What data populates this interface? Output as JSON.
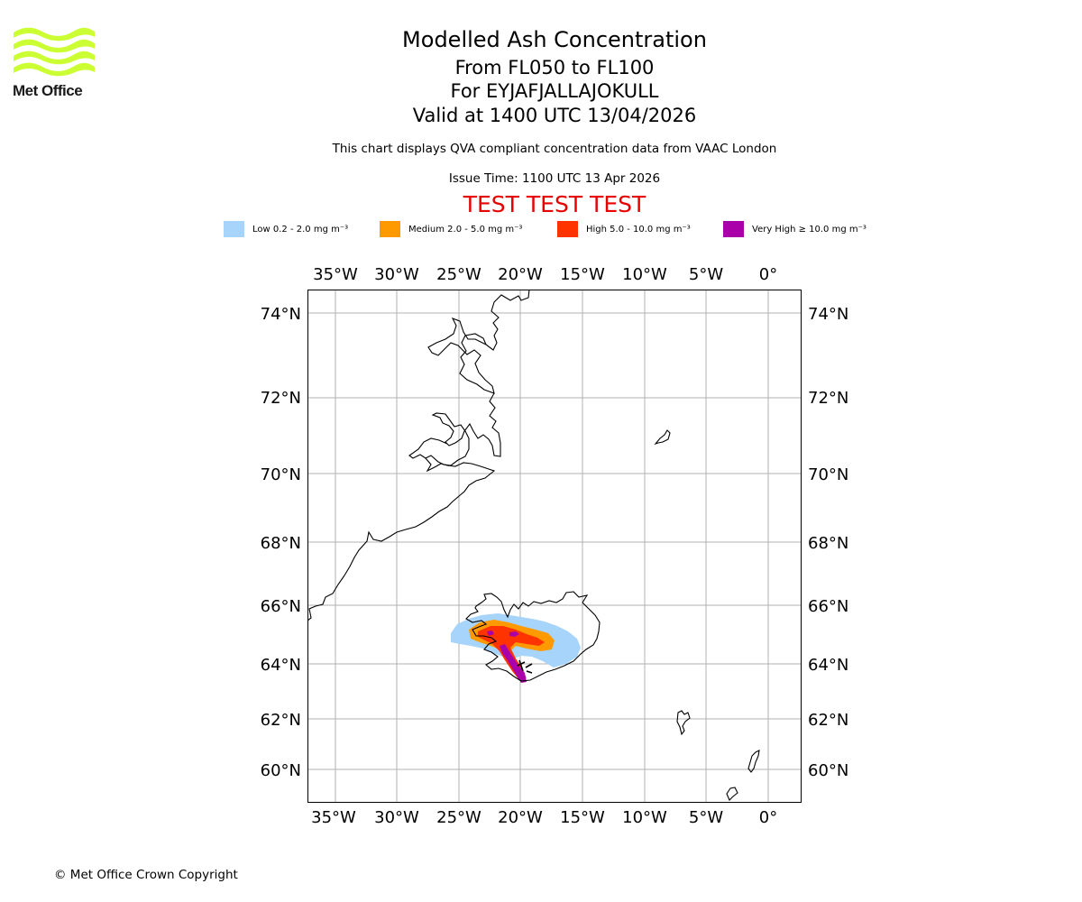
{
  "logo": {
    "text": "Met Office",
    "color": "#ccff33",
    "icon": "met-office-waves-icon"
  },
  "header": {
    "title": "Modelled Ash Concentration",
    "level_range": "From FL050 to FL100",
    "volcano": "For EYJAFJALLAJOKULL",
    "valid_time": "Valid at 1400 UTC 13/04/2026",
    "description": "This chart displays QVA compliant concentration data from VAAC London",
    "issue_time": "Issue Time: 1100 UTC 13 Apr 2026",
    "test_banner": "TEST TEST TEST",
    "test_color": "#e60000"
  },
  "legend": [
    {
      "label": "Low 0.2 - 2.0 mg m⁻³",
      "color": "#a6d4fa"
    },
    {
      "label": "Medium 2.0 - 5.0 mg m⁻³",
      "color": "#ff9900"
    },
    {
      "label": "High 5.0 - 10.0 mg m⁻³",
      "color": "#ff3300"
    },
    {
      "label": "Very High  ≥  10.0 mg m⁻³",
      "color": "#aa00aa"
    }
  ],
  "map": {
    "lon_labels": [
      "35°W",
      "30°W",
      "25°W",
      "20°W",
      "15°W",
      "10°W",
      "5°W",
      "0°"
    ],
    "lat_labels": [
      "74°N",
      "72°N",
      "70°N",
      "68°N",
      "66°N",
      "64°N",
      "62°N",
      "60°N"
    ],
    "grid_color": "#b0b0b0",
    "coast_color": "#000000"
  },
  "footer": {
    "copyright": "© Met Office Crown Copyright"
  }
}
